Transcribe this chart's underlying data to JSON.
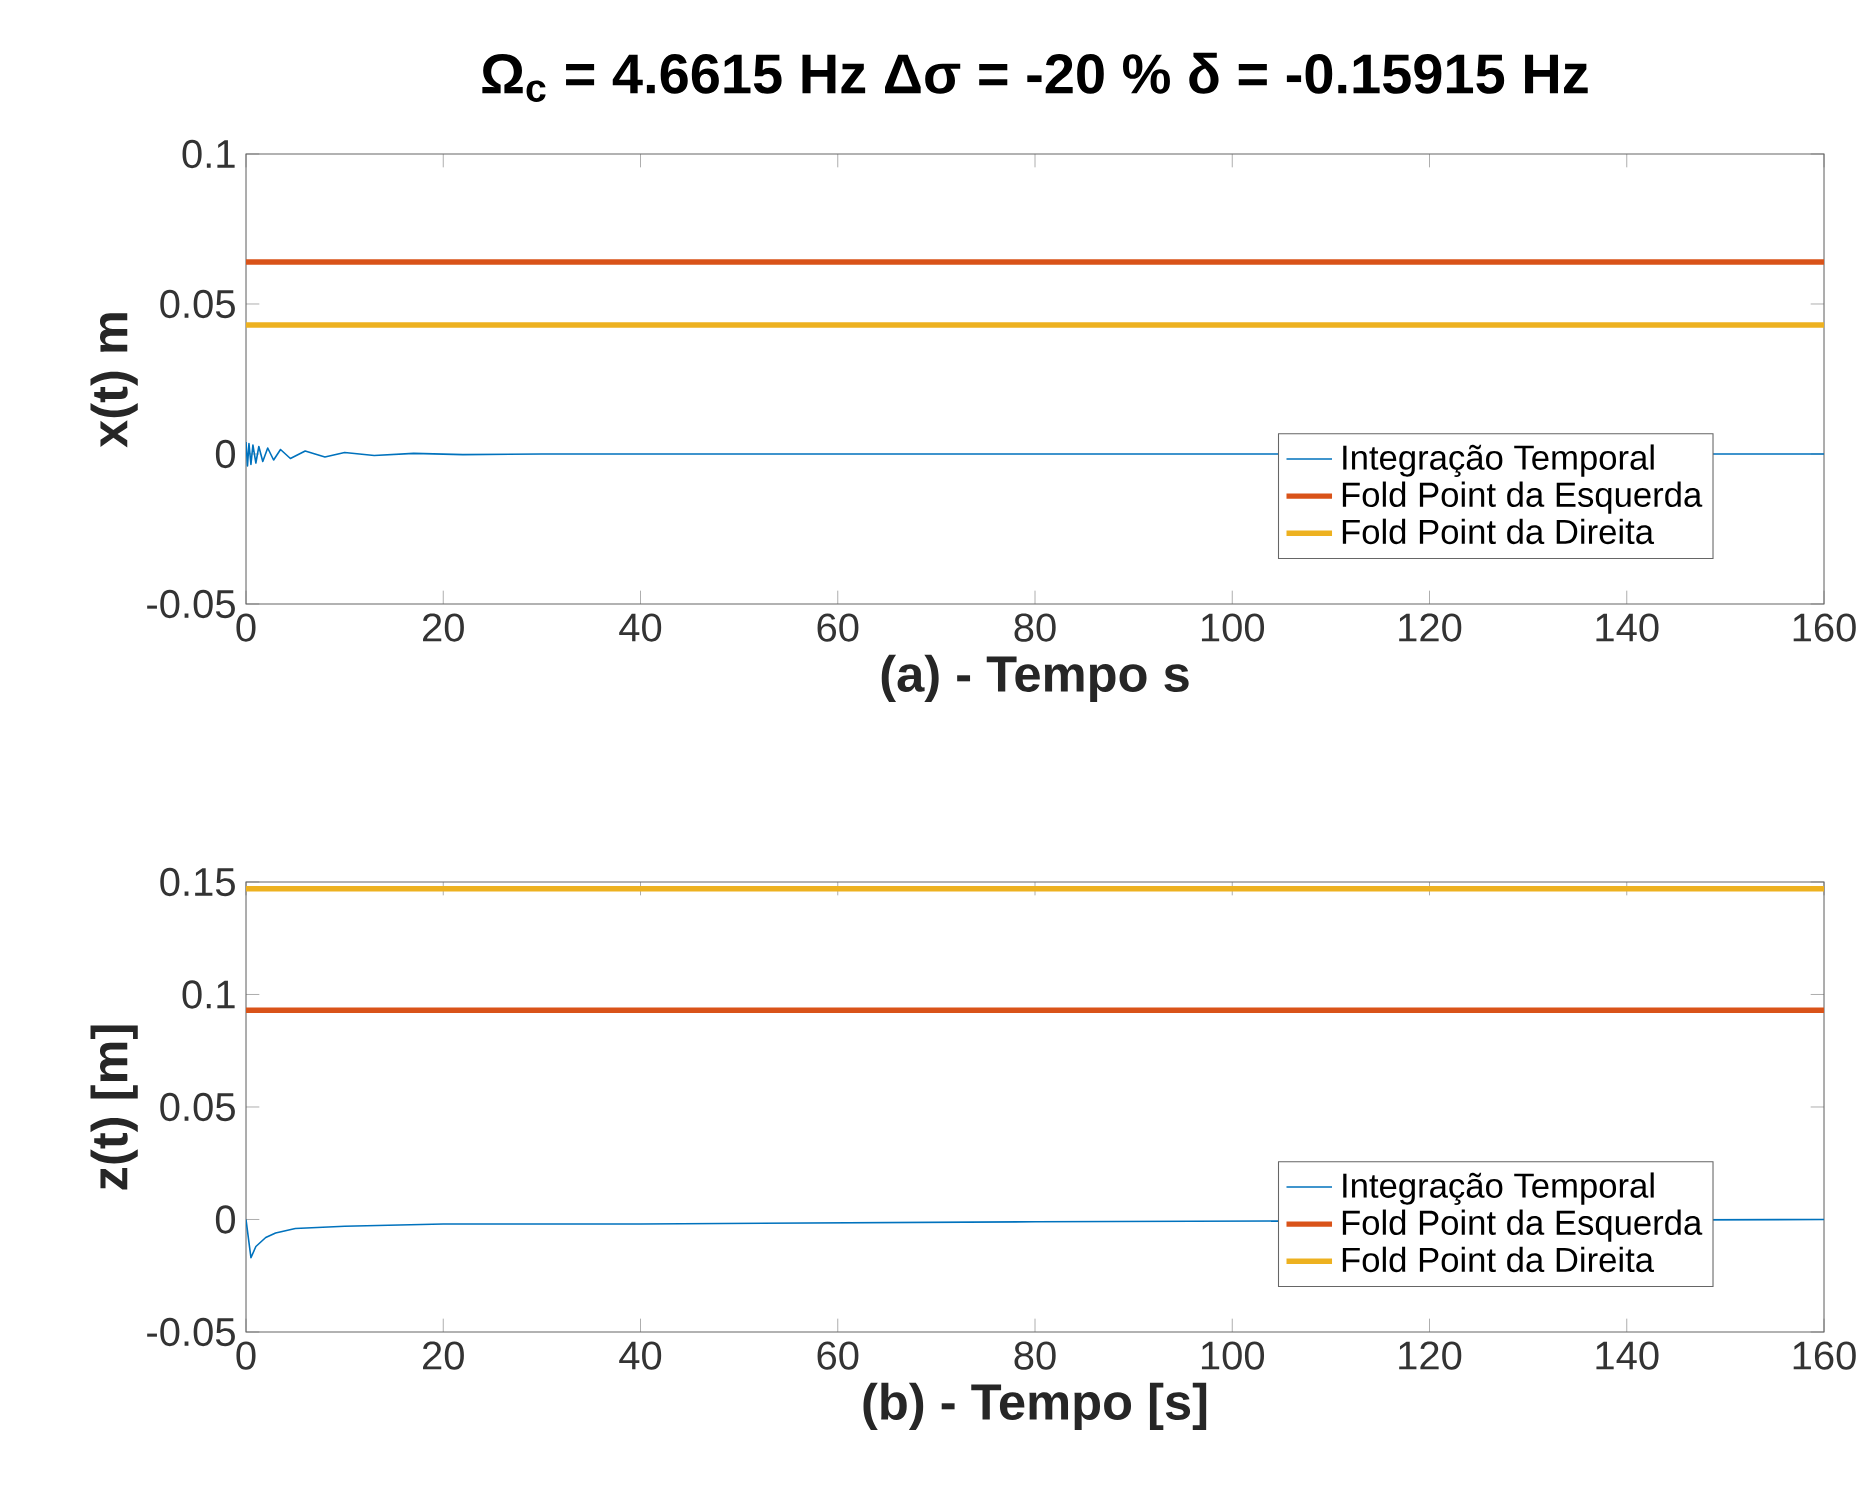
{
  "chart_data": [
    {
      "type": "line",
      "title": "Ω$_{c}$ = 4.6615 Hz      Δσ = -20 %      δ = -0.15915 Hz",
      "xlabel": "(a) - Tempo s",
      "ylabel": "x(t) m",
      "xlim": [
        0,
        160
      ],
      "ylim": [
        -0.05,
        0.1
      ],
      "xticks": [
        0,
        20,
        40,
        60,
        80,
        100,
        120,
        140,
        160
      ],
      "yticks": [
        -0.05,
        0,
        0.05,
        0.1
      ],
      "legend": "bottom right",
      "grid": false,
      "marker": "none",
      "line_style": "solid",
      "series": [
        {
          "name": "Integração Temporal",
          "color": "#0072bd",
          "x": [
            0,
            0.15,
            0.3,
            0.5,
            0.7,
            1,
            1.3,
            1.7,
            2.2,
            2.8,
            3.5,
            4.5,
            6,
            8,
            10,
            13,
            17,
            22,
            30,
            160
          ],
          "values": [
            0.004,
            -0.004,
            0.0035,
            -0.0035,
            0.003,
            -0.003,
            0.0025,
            -0.0025,
            0.002,
            -0.002,
            0.0015,
            -0.0015,
            0.001,
            -0.001,
            0.0005,
            -0.0005,
            0.0002,
            -0.0002,
            0,
            0
          ]
        },
        {
          "name": "Fold Point da Esquerda",
          "color": "#d95319",
          "x": [
            0,
            160
          ],
          "values": [
            0.064,
            0.064
          ]
        },
        {
          "name": "Fold Point da Direita",
          "color": "#edb120",
          "x": [
            0,
            160
          ],
          "values": [
            0.043,
            0.043
          ]
        }
      ]
    },
    {
      "type": "line",
      "xlabel": "(b) - Tempo [s]",
      "ylabel": "z(t) [m]",
      "xlim": [
        0,
        160
      ],
      "ylim": [
        -0.05,
        0.15
      ],
      "xticks": [
        0,
        20,
        40,
        60,
        80,
        100,
        120,
        140,
        160
      ],
      "yticks": [
        -0.05,
        0,
        0.05,
        0.1,
        0.15
      ],
      "legend": "bottom right",
      "grid": false,
      "marker": "none",
      "line_style": "solid",
      "series": [
        {
          "name": "Integração Temporal",
          "color": "#0072bd",
          "x": [
            0,
            0.5,
            1,
            2,
            3,
            5,
            10,
            20,
            40,
            80,
            120,
            160
          ],
          "values": [
            0,
            -0.017,
            -0.012,
            -0.008,
            -0.006,
            -0.004,
            -0.003,
            -0.002,
            -0.002,
            -0.001,
            null,
            0
          ]
        },
        {
          "name": "Fold Point da Esquerda",
          "color": "#d95319",
          "x": [
            0,
            160
          ],
          "values": [
            0.093,
            0.093
          ]
        },
        {
          "name": "Fold Point da Direita",
          "color": "#edb120",
          "x": [
            0,
            160
          ],
          "values": [
            0.147,
            0.147
          ]
        }
      ]
    }
  ]
}
